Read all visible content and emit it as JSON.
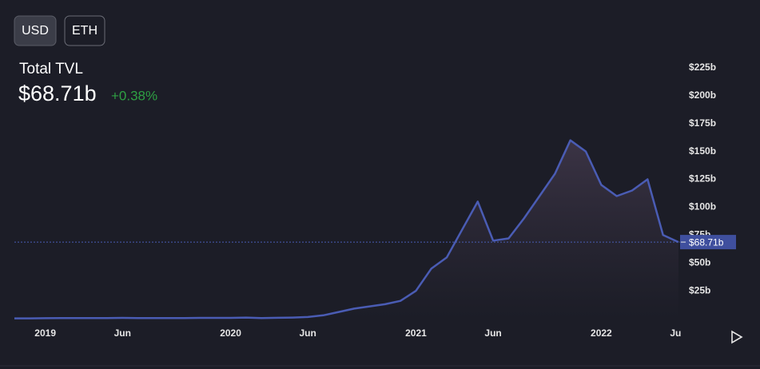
{
  "chart_data": {
    "type": "area",
    "currency_options": [
      "USD",
      "ETH"
    ],
    "title": "Total TVL",
    "headline_value": "$68.71b",
    "change": "+0.38%",
    "color": "#4a5cb4",
    "x": [
      "2018-11",
      "2018-12",
      "2019-01",
      "2019-02",
      "2019-03",
      "2019-04",
      "2019-05",
      "2019-06",
      "2019-07",
      "2019-08",
      "2019-09",
      "2019-10",
      "2019-11",
      "2019-12",
      "2020-01",
      "2020-02",
      "2020-03",
      "2020-04",
      "2020-05",
      "2020-06",
      "2020-07",
      "2020-08",
      "2020-09",
      "2020-10",
      "2020-11",
      "2020-12",
      "2021-01",
      "2021-02",
      "2021-03",
      "2021-04",
      "2021-05",
      "2021-06",
      "2021-07",
      "2021-08",
      "2021-09",
      "2021-10",
      "2021-11",
      "2021-12",
      "2022-01",
      "2022-02",
      "2022-03",
      "2022-04",
      "2022-05",
      "2022-06"
    ],
    "values": [
      0.3,
      0.3,
      0.4,
      0.5,
      0.5,
      0.6,
      0.6,
      0.7,
      0.6,
      0.6,
      0.6,
      0.6,
      0.7,
      0.7,
      0.7,
      1,
      0.6,
      0.8,
      1,
      1.5,
      3,
      6,
      9,
      11,
      13,
      16,
      25,
      45,
      55,
      80,
      105,
      70,
      72,
      90,
      110,
      130,
      160,
      150,
      120,
      110,
      115,
      125,
      75,
      68.71
    ],
    "xlim": [
      "2018-11",
      "2022-06"
    ],
    "xticks": [
      {
        "value": "2019-01",
        "label": "2019"
      },
      {
        "value": "2019-06",
        "label": "Jun"
      },
      {
        "value": "2020-01",
        "label": "2020"
      },
      {
        "value": "2020-06",
        "label": "Jun"
      },
      {
        "value": "2021-01",
        "label": "2021"
      },
      {
        "value": "2021-06",
        "label": "Jun"
      },
      {
        "value": "2022-01",
        "label": "2022"
      },
      {
        "value": "2022-06",
        "label": "Jun"
      }
    ],
    "ylim": [
      0,
      235
    ],
    "yticks": [
      {
        "value": 25,
        "label": "$25b"
      },
      {
        "value": 50,
        "label": "$50b"
      },
      {
        "value": 75,
        "label": "$75b"
      },
      {
        "value": 100,
        "label": "$100b"
      },
      {
        "value": 125,
        "label": "$125b"
      },
      {
        "value": 150,
        "label": "$150b"
      },
      {
        "value": 175,
        "label": "$175b"
      },
      {
        "value": 200,
        "label": "$200b"
      },
      {
        "value": 225,
        "label": "$225b"
      }
    ],
    "current": {
      "value": 68.71,
      "label": "$68.71b"
    }
  }
}
